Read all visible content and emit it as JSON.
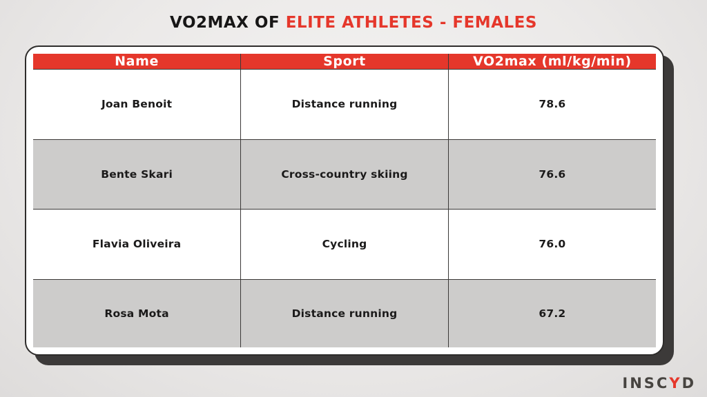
{
  "title": {
    "prefix": "VO2MAX OF ",
    "highlight": "ELITE ATHLETES - FEMALES"
  },
  "chart_data": {
    "type": "table",
    "title": "VO2MAX OF ELITE ATHLETES - FEMALES",
    "columns": [
      "Name",
      "Sport",
      "VO2max (ml/kg/min)"
    ],
    "rows": [
      [
        "Joan Benoit",
        "Distance running",
        "78.6"
      ],
      [
        "Bente Skari",
        "Cross-country skiing",
        "76.6"
      ],
      [
        "Flavia Oliveira",
        "Cycling",
        "76.0"
      ],
      [
        "Rosa Mota",
        "Distance running",
        "67.2"
      ]
    ]
  },
  "logo": {
    "part1": "INSC",
    "accent": "Y",
    "part2": "D"
  },
  "colors": {
    "accent_red": "#e5372b",
    "row_alt_gray": "#cdcccb",
    "card_border": "#2e2c2b",
    "shadow_dark": "#3c3a39",
    "background_gray": "#ebe9e8",
    "header_text": "#ffffff",
    "body_text": "#1b1a1a",
    "logo_gray": "#474440"
  }
}
